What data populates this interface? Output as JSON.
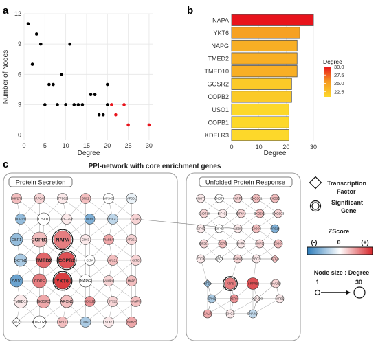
{
  "panels": {
    "a": "a",
    "b": "b",
    "c": "c"
  },
  "chart_data": [
    {
      "type": "scatter",
      "xlabel": "Degree",
      "ylabel": "Number of Nodes",
      "xlim": [
        0,
        31
      ],
      "ylim": [
        -0.5,
        12
      ],
      "xticks": [
        0,
        5,
        10,
        15,
        20,
        25,
        30
      ],
      "yticks": [
        0,
        3,
        6,
        9,
        12
      ],
      "grid": true,
      "colors": {
        "normal": "#000000",
        "highlight": "#e8141c"
      },
      "points": [
        {
          "x": 1,
          "y": 11,
          "hl": false
        },
        {
          "x": 2,
          "y": 7,
          "hl": false
        },
        {
          "x": 3,
          "y": 10,
          "hl": false
        },
        {
          "x": 4,
          "y": 9,
          "hl": false
        },
        {
          "x": 5,
          "y": 3,
          "hl": false
        },
        {
          "x": 6,
          "y": 5,
          "hl": false
        },
        {
          "x": 7,
          "y": 5,
          "hl": false
        },
        {
          "x": 8,
          "y": 3,
          "hl": false
        },
        {
          "x": 9,
          "y": 6,
          "hl": false
        },
        {
          "x": 10,
          "y": 3,
          "hl": false
        },
        {
          "x": 11,
          "y": 9,
          "hl": false
        },
        {
          "x": 12,
          "y": 3,
          "hl": false
        },
        {
          "x": 13,
          "y": 3,
          "hl": false
        },
        {
          "x": 14,
          "y": 3,
          "hl": false
        },
        {
          "x": 16,
          "y": 4,
          "hl": false
        },
        {
          "x": 17,
          "y": 4,
          "hl": false
        },
        {
          "x": 18,
          "y": 2,
          "hl": false
        },
        {
          "x": 19,
          "y": 2,
          "hl": false
        },
        {
          "x": 20,
          "y": 5,
          "hl": false
        },
        {
          "x": 20,
          "y": 3,
          "hl": false
        },
        {
          "x": 21,
          "y": 3,
          "hl": true
        },
        {
          "x": 22,
          "y": 2,
          "hl": true
        },
        {
          "x": 24,
          "y": 3,
          "hl": true
        },
        {
          "x": 25,
          "y": 1,
          "hl": true
        },
        {
          "x": 30,
          "y": 1,
          "hl": true
        }
      ]
    },
    {
      "type": "bar",
      "orientation": "horizontal",
      "xlabel": "Degree",
      "xlim": [
        0,
        32
      ],
      "xticks": [
        0,
        10,
        20,
        30
      ],
      "grid": true,
      "categories": [
        "NAPA",
        "YKT6",
        "NAPG",
        "TMED2",
        "TMED10",
        "GOSR2",
        "COPB2",
        "USO1",
        "COPB1",
        "KDELR3"
      ],
      "values": [
        30,
        25,
        24,
        24,
        24,
        22,
        22,
        21,
        21,
        21
      ],
      "legend": {
        "title": "Degree",
        "ticks": [
          30.0,
          27.5,
          25.0,
          22.5
        ],
        "labels": [
          "30.0",
          "27.5",
          "25.0",
          "22.5"
        ],
        "range": [
          21,
          30
        ],
        "low_color": "#fdd82a",
        "high_color": "#e8141c"
      }
    }
  ],
  "network": {
    "title": "PPI-network with core enrichment genes",
    "group1_title": "Protein Secretion",
    "group2_title": "Unfolded Protein Response",
    "legend": {
      "tf_label_1": "Transcription",
      "tf_label_2": "Factor",
      "sig_label_1": "Significant",
      "sig_label_2": "Gene",
      "zscore_title": "ZScore",
      "z_neg": "(-)",
      "z_zero": "0",
      "z_pos": "(+)",
      "size_title": "Node size : Degree",
      "size_min": "1",
      "size_max": "30"
    },
    "nodes1": [
      {
        "l": "IGF2R",
        "z": 0.3
      },
      {
        "l": "ARFGAP",
        "z": 0.2
      },
      {
        "l": "TPD52",
        "z": 0.1
      },
      {
        "l": "SNX2",
        "z": 0.3
      },
      {
        "l": "VPS45",
        "z": 0.0
      },
      {
        "l": "AP3B1",
        "z": -0.1
      },
      {
        "l": "IGF1R",
        "z": -0.5
      },
      {
        "l": "USO1",
        "z": 0.0
      },
      {
        "l": "ARFGAP",
        "z": 0.1
      },
      {
        "l": "DCRL",
        "z": -0.6
      },
      {
        "l": "SH3GL2",
        "z": -0.3
      },
      {
        "l": "ATP6",
        "z": 0.2
      },
      {
        "l": "GBF1",
        "z": -0.5
      },
      {
        "l": "COPB1",
        "z": 0.3
      },
      {
        "l": "NAPA",
        "z": 0.6
      },
      {
        "l": "CD63",
        "z": 0.1
      },
      {
        "l": "RAB5A",
        "z": 0.4
      },
      {
        "l": "AP2S1",
        "z": 0.2
      },
      {
        "l": "DCTN1",
        "z": -0.4
      },
      {
        "l": "TMED2",
        "z": 0.7
      },
      {
        "l": "COPB2",
        "z": 0.8
      },
      {
        "l": "CLTA",
        "z": 0.0
      },
      {
        "l": "AP2S1",
        "z": 0.3
      },
      {
        "l": "CLTC",
        "z": 0.2
      },
      {
        "l": "ZW10",
        "z": -0.7
      },
      {
        "l": "COPE",
        "z": 0.6
      },
      {
        "l": "YKT6",
        "z": 0.9
      },
      {
        "l": "NAPG",
        "z": 0.0
      },
      {
        "l": "VAMP4",
        "z": 0.2
      },
      {
        "l": "M6PR",
        "z": 0.3
      },
      {
        "l": "TMED10",
        "z": 0.1
      },
      {
        "l": "GOSR2",
        "z": 0.4
      },
      {
        "l": "ARCN1",
        "z": 0.3
      },
      {
        "l": "SEC22B",
        "z": 0.5
      },
      {
        "l": "STX12",
        "z": 0.2
      },
      {
        "l": "VAMP3",
        "z": 0.3
      },
      {
        "l": "PAGE",
        "z": 0.0
      },
      {
        "l": "KDELR3",
        "z": 0.0
      },
      {
        "l": "BET1",
        "z": 0.3
      },
      {
        "l": "COG2",
        "z": -0.4
      },
      {
        "l": "STX7",
        "z": 0.1
      },
      {
        "l": "RAB22",
        "z": 0.4
      }
    ],
    "nodes2": [
      {
        "l": "CNOT3",
        "z": 0.1
      },
      {
        "l": "CNOT6",
        "z": 0.0
      },
      {
        "l": "PARP1",
        "z": 0.2
      },
      {
        "l": "EXOSC1",
        "z": 0.3
      },
      {
        "l": "EXOSC",
        "z": 0.3
      },
      {
        "l": "CNOT10",
        "z": 0.2
      },
      {
        "l": "EIF4G1",
        "z": 0.1
      },
      {
        "l": "EIF4A3",
        "z": 0.2
      },
      {
        "l": "EXOSC2",
        "z": 0.3
      },
      {
        "l": "EXOSC3",
        "z": 0.2
      },
      {
        "l": "EIF4E",
        "z": 0.1
      },
      {
        "l": "EIF4E",
        "z": 0.0
      },
      {
        "l": "USB8",
        "z": 0.1
      },
      {
        "l": "EXOSC",
        "z": 0.3
      },
      {
        "l": "RPS14",
        "z": -0.6
      },
      {
        "l": "EIF2S1",
        "z": 0.2
      },
      {
        "l": "DCP2",
        "z": 0.3
      },
      {
        "l": "PARN",
        "z": 0.1
      },
      {
        "l": "IMP3",
        "z": 0.2
      },
      {
        "l": "EXOSC",
        "z": 0.3
      },
      {
        "l": "EDC4",
        "z": 0.1
      },
      {
        "l": "XBP1",
        "z": 0.0
      },
      {
        "l": "HSPA5",
        "z": 0.2
      },
      {
        "l": "SEC3",
        "z": 0.1
      },
      {
        "l": "ATF4",
        "z": 0.3
      }
    ],
    "nodes2b": [
      {
        "l": "NFE2",
        "z": -0.5
      },
      {
        "l": "ATF6",
        "z": 0.6
      },
      {
        "l": "SRPRB",
        "z": 0.8
      },
      {
        "l": "DNAJB9",
        "z": 0.2
      },
      {
        "l": "ERN1",
        "z": -0.4
      },
      {
        "l": "HSPA5",
        "z": 0.5
      },
      {
        "l": "DNAJC3",
        "z": 0.1
      },
      {
        "l": "WFS1",
        "z": 0.1
      },
      {
        "l": "CALR",
        "z": 0.4
      },
      {
        "l": "SHC1",
        "z": 0.1
      },
      {
        "l": "DNAJA4",
        "z": -0.3
      }
    ]
  }
}
